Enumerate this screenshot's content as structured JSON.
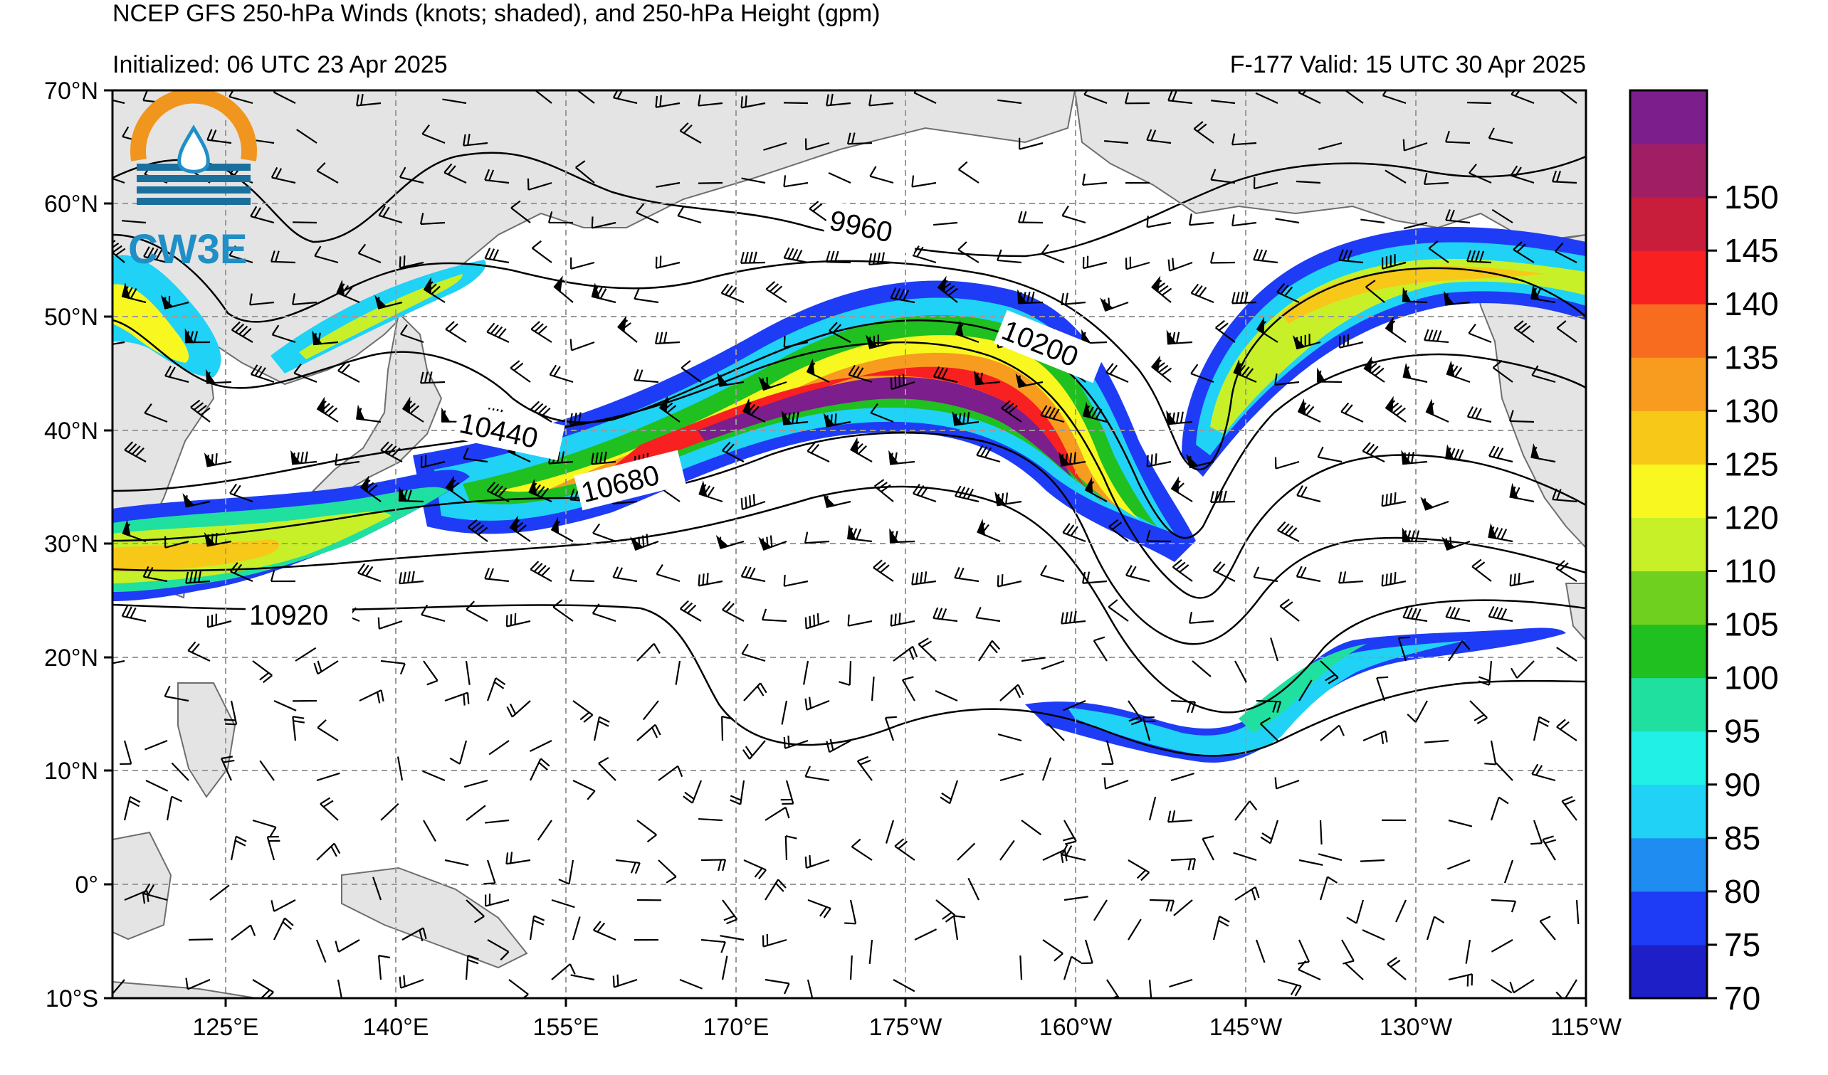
{
  "header": {
    "title": "NCEP GFS 250-hPa Winds (knots; shaded), and 250-hPa Height (gpm)",
    "initialized": "Initialized: 06 UTC 23 Apr 2025",
    "valid": "F-177  Valid: 15 UTC 30 Apr 2025"
  },
  "logo": {
    "text": "CW3E"
  },
  "axes": {
    "lat_labels": [
      "70°N",
      "60°N",
      "50°N",
      "40°N",
      "30°N",
      "20°N",
      "10°N",
      "0°",
      "10°S"
    ],
    "lon_labels": [
      "125°E",
      "140°E",
      "155°E",
      "170°E",
      "175°W",
      "160°W",
      "145°W",
      "130°W",
      "115°W"
    ]
  },
  "colorbar": {
    "labels": [
      "70",
      "75",
      "80",
      "85",
      "90",
      "95",
      "100",
      "105",
      "110",
      "120",
      "125",
      "130",
      "135",
      "140",
      "145",
      "150"
    ],
    "colors": [
      "#1f1fc8",
      "#1e3cf5",
      "#1e8cf0",
      "#20d2f5",
      "#20f0e6",
      "#20e0a0",
      "#20c020",
      "#70d020",
      "#c8f028",
      "#f8f820",
      "#f8c818",
      "#f89c20",
      "#f86c20",
      "#f82020",
      "#c81e3c",
      "#a01e64",
      "#7c1e8c"
    ]
  },
  "contour_labels": [
    "9960",
    "10200",
    "10440",
    "10680",
    "10920"
  ],
  "chart_data": {
    "type": "map",
    "variable": "250-hPa wind speed (knots, shaded) and 250-hPa geopotential height (gpm, contours)",
    "lat_range": [
      -10,
      70
    ],
    "lon_range": [
      "115°E",
      "115°W"
    ],
    "contour_levels": [
      9960,
      10200,
      10440,
      10680,
      10920
    ]
  }
}
